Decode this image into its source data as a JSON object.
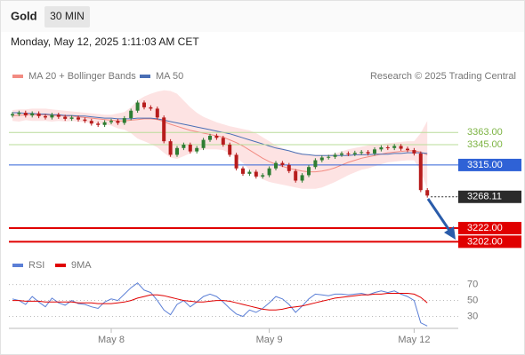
{
  "header": {
    "title": "Gold",
    "timeframe": "30 MIN",
    "timestamp": "Monday, May 12, 2025 1:11:03 AM CET"
  },
  "chart_data": [
    {
      "type": "candlestick",
      "source": "Research © 2025 Trading Central",
      "ylim": [
        3192,
        3460
      ],
      "up_color": "#2e7d32",
      "down_color": "#b71c1c",
      "open": [
        3388,
        3390,
        3392,
        3388,
        3391,
        3387,
        3385,
        3389,
        3386,
        3383,
        3385,
        3382,
        3380,
        3376,
        3374,
        3378,
        3380,
        3377,
        3384,
        3395,
        3407,
        3400,
        3398,
        3385,
        3350,
        3330,
        3340,
        3345,
        3335,
        3340,
        3352,
        3358,
        3355,
        3345,
        3330,
        3310,
        3302,
        3305,
        3298,
        3300,
        3310,
        3318,
        3315,
        3306,
        3292,
        3300,
        3312,
        3322,
        3326,
        3327,
        3330,
        3332,
        3331,
        3333,
        3334,
        3332,
        3338,
        3341,
        3340,
        3343,
        3339,
        3337,
        3332,
        3278
      ],
      "high": [
        3393,
        3395,
        3395,
        3394,
        3394,
        3390,
        3392,
        3392,
        3389,
        3388,
        3388,
        3385,
        3383,
        3379,
        3381,
        3383,
        3383,
        3387,
        3398,
        3410,
        3410,
        3403,
        3401,
        3388,
        3353,
        3343,
        3348,
        3348,
        3343,
        3355,
        3361,
        3361,
        3358,
        3348,
        3333,
        3313,
        3308,
        3308,
        3303,
        3313,
        3321,
        3321,
        3318,
        3309,
        3303,
        3315,
        3325,
        3329,
        3330,
        3333,
        3335,
        3335,
        3336,
        3337,
        3337,
        3341,
        3344,
        3344,
        3346,
        3346,
        3342,
        3340,
        3335,
        3281
      ],
      "low": [
        3385,
        3387,
        3385,
        3385,
        3384,
        3382,
        3382,
        3383,
        3380,
        3380,
        3379,
        3377,
        3373,
        3371,
        3371,
        3375,
        3374,
        3374,
        3381,
        3392,
        3397,
        3395,
        3382,
        3347,
        3327,
        3327,
        3337,
        3332,
        3332,
        3337,
        3349,
        3352,
        3342,
        3327,
        3307,
        3299,
        3299,
        3295,
        3295,
        3297,
        3307,
        3312,
        3303,
        3289,
        3289,
        3297,
        3309,
        3319,
        3323,
        3324,
        3327,
        3328,
        3328,
        3330,
        3329,
        3329,
        3335,
        3337,
        3337,
        3336,
        3334,
        3329,
        3275,
        3267
      ],
      "close": [
        3390,
        3392,
        3388,
        3391,
        3387,
        3385,
        3389,
        3386,
        3383,
        3385,
        3382,
        3380,
        3376,
        3374,
        3378,
        3380,
        3377,
        3384,
        3395,
        3407,
        3400,
        3398,
        3385,
        3350,
        3330,
        3340,
        3345,
        3335,
        3340,
        3352,
        3358,
        3355,
        3345,
        3330,
        3310,
        3302,
        3305,
        3298,
        3300,
        3310,
        3318,
        3315,
        3306,
        3292,
        3300,
        3312,
        3322,
        3326,
        3327,
        3330,
        3332,
        3331,
        3333,
        3334,
        3332,
        3338,
        3341,
        3340,
        3343,
        3339,
        3337,
        3332,
        3278,
        3270
      ],
      "series": [
        {
          "name": "MA 20 + Bollinger Bands",
          "color": "#f28b82",
          "band_color": "#fde3e3",
          "values": [
            3388,
            3388,
            3389,
            3389,
            3389,
            3389,
            3388,
            3388,
            3387,
            3387,
            3386,
            3385,
            3384,
            3383,
            3382,
            3381,
            3380,
            3380,
            3381,
            3382,
            3383,
            3383,
            3382,
            3379,
            3375,
            3372,
            3369,
            3366,
            3364,
            3362,
            3360,
            3358,
            3356,
            3352,
            3348,
            3343,
            3337,
            3331,
            3325,
            3320,
            3316,
            3313,
            3310,
            3308,
            3306,
            3305,
            3305,
            3306,
            3308,
            3311,
            3315,
            3319,
            3322,
            3325,
            3327,
            3329,
            3331,
            3333,
            3334,
            3335,
            3336,
            3336,
            3334,
            3330
          ],
          "upper": [
            3396,
            3397,
            3397,
            3398,
            3398,
            3398,
            3397,
            3396,
            3395,
            3394,
            3393,
            3392,
            3391,
            3390,
            3389,
            3389,
            3391,
            3393,
            3400,
            3410,
            3416,
            3420,
            3423,
            3425,
            3424,
            3420,
            3410,
            3400,
            3392,
            3386,
            3382,
            3378,
            3375,
            3372,
            3370,
            3368,
            3366,
            3362,
            3356,
            3350,
            3344,
            3340,
            3336,
            3334,
            3332,
            3330,
            3330,
            3330,
            3330,
            3332,
            3335,
            3338,
            3340,
            3342,
            3344,
            3345,
            3346,
            3347,
            3348,
            3349,
            3350,
            3350,
            3362,
            3380
          ],
          "lower": [
            3380,
            3379,
            3381,
            3380,
            3380,
            3380,
            3379,
            3380,
            3379,
            3380,
            3379,
            3378,
            3377,
            3376,
            3375,
            3373,
            3369,
            3367,
            3362,
            3354,
            3350,
            3346,
            3341,
            3333,
            3326,
            3324,
            3328,
            3332,
            3336,
            3338,
            3338,
            3338,
            3337,
            3332,
            3326,
            3318,
            3308,
            3300,
            3294,
            3290,
            3288,
            3286,
            3284,
            3282,
            3280,
            3280,
            3280,
            3282,
            3286,
            3290,
            3295,
            3300,
            3304,
            3308,
            3310,
            3313,
            3316,
            3319,
            3320,
            3321,
            3322,
            3322,
            3306,
            3280
          ]
        },
        {
          "name": "MA 50",
          "color": "#4a6fb5",
          "values": [
            3392,
            3392,
            3391,
            3391,
            3390,
            3390,
            3389,
            3389,
            3388,
            3388,
            3387,
            3387,
            3386,
            3385,
            3384,
            3384,
            3383,
            3383,
            3383,
            3384,
            3384,
            3384,
            3383,
            3381,
            3379,
            3377,
            3375,
            3373,
            3371,
            3369,
            3367,
            3365,
            3363,
            3361,
            3358,
            3355,
            3352,
            3349,
            3346,
            3343,
            3340,
            3338,
            3336,
            3333,
            3331,
            3330,
            3329,
            3329,
            3329,
            3329,
            3329,
            3329,
            3330,
            3330,
            3330,
            3331,
            3331,
            3331,
            3332,
            3332,
            3333,
            3333,
            3333,
            3332
          ]
        }
      ],
      "levels": [
        {
          "value": 3363,
          "label": "3363.00",
          "color": "#7cb342",
          "boxed": false,
          "line": "solid"
        },
        {
          "value": 3345,
          "label": "3345.00",
          "color": "#7cb342",
          "boxed": false,
          "line": "solid"
        },
        {
          "value": 3315,
          "label": "3315.00",
          "color": "#2f62d6",
          "boxed": true,
          "line": "solid"
        },
        {
          "value": 3268.11,
          "label": "3268.11",
          "color": "#2b2b2b",
          "boxed": true,
          "line": "dotted"
        },
        {
          "value": 3222,
          "label": "3222.00",
          "color": "#e00000",
          "boxed": true,
          "line": "solid"
        },
        {
          "value": 3202,
          "label": "3202.00",
          "color": "#e00000",
          "boxed": true,
          "line": "solid"
        }
      ]
    },
    {
      "type": "line",
      "ylim": [
        15,
        84
      ],
      "yticks": [
        30,
        50,
        70
      ],
      "grid": true,
      "categories": [
        null,
        null,
        null,
        null,
        null,
        null,
        null,
        null,
        null,
        null,
        null,
        null,
        null,
        null,
        null,
        "May 8",
        null,
        null,
        null,
        null,
        null,
        null,
        null,
        null,
        null,
        null,
        null,
        null,
        null,
        null,
        null,
        null,
        null,
        null,
        null,
        null,
        null,
        null,
        null,
        "May 9",
        null,
        null,
        null,
        null,
        null,
        null,
        null,
        null,
        null,
        null,
        null,
        null,
        null,
        null,
        null,
        null,
        null,
        null,
        null,
        null,
        null,
        "May 12",
        null,
        null
      ],
      "series": [
        {
          "name": "RSI",
          "color": "#5b7fd6",
          "values": [
            52,
            50,
            45,
            55,
            48,
            42,
            53,
            47,
            44,
            50,
            46,
            45,
            42,
            40,
            48,
            52,
            50,
            58,
            66,
            72,
            63,
            60,
            50,
            38,
            32,
            45,
            50,
            42,
            48,
            55,
            58,
            55,
            48,
            40,
            33,
            30,
            38,
            35,
            40,
            47,
            55,
            52,
            45,
            35,
            43,
            52,
            58,
            57,
            56,
            58,
            58,
            57,
            58,
            59,
            57,
            60,
            62,
            60,
            62,
            58,
            55,
            50,
            22,
            18
          ]
        },
        {
          "name": "9MA",
          "color": "#e00000",
          "values": [
            50,
            50,
            49,
            49,
            49,
            48,
            48,
            48,
            48,
            48,
            47,
            47,
            47,
            46,
            46,
            46,
            47,
            48,
            50,
            53,
            55,
            57,
            57,
            56,
            54,
            52,
            50,
            49,
            48,
            48,
            49,
            50,
            50,
            49,
            47,
            45,
            43,
            41,
            39,
            38,
            38,
            39,
            41,
            42,
            43,
            45,
            47,
            49,
            51,
            53,
            54,
            55,
            56,
            57,
            57,
            58,
            58,
            59,
            59,
            59,
            59,
            58,
            54,
            47
          ]
        }
      ]
    }
  ]
}
